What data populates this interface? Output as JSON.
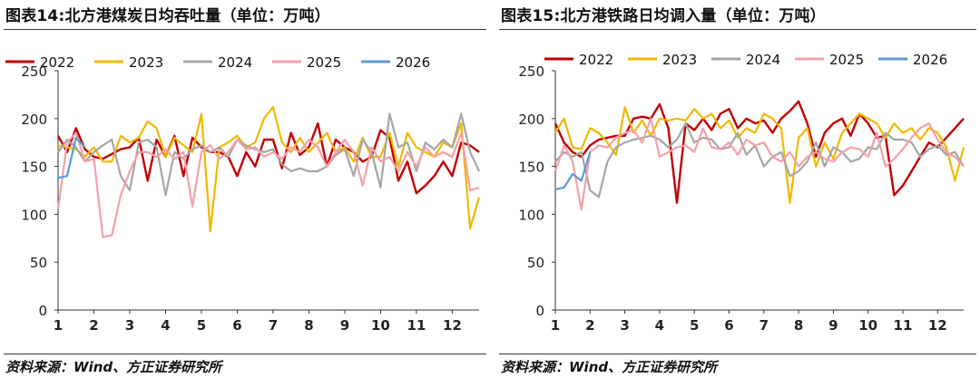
{
  "charts": [
    {
      "title": "图表14:北方港煤炭日均吞吐量（单位：万吨）",
      "source": "资料来源：Wind、方正证券研究所"
    },
    {
      "title": "图表15:北方港铁路日均调入量（单位：万吨）",
      "source": "资料来源：Wind、方正证券研究所"
    }
  ],
  "chart_data": [
    {
      "type": "line",
      "title": "图表14:北方港煤炭日均吞吐量（单位：万吨）",
      "xlabel": "",
      "ylabel": "",
      "xlim": [
        1,
        12.75
      ],
      "ylim": [
        0,
        250
      ],
      "yticks": [
        0,
        50,
        100,
        150,
        200,
        250
      ],
      "xticks": [
        1,
        2,
        3,
        4,
        5,
        6,
        7,
        8,
        9,
        10,
        11,
        12
      ],
      "legend": "top",
      "series": [
        {
          "name": "2022",
          "color": "#c00000",
          "x": [
            1,
            1.25,
            1.5,
            1.75,
            2,
            2.25,
            2.5,
            2.75,
            3,
            3.25,
            3.5,
            3.75,
            4,
            4.25,
            4.5,
            4.75,
            5,
            5.25,
            5.5,
            5.75,
            6,
            6.25,
            6.5,
            6.75,
            7,
            7.25,
            7.5,
            7.75,
            8,
            8.25,
            8.5,
            8.75,
            9,
            9.25,
            9.5,
            9.75,
            10,
            10.25,
            10.5,
            10.75,
            11,
            11.25,
            11.5,
            11.75,
            12,
            12.25,
            12.5,
            12.75
          ],
          "y": [
            182,
            165,
            190,
            168,
            160,
            158,
            163,
            168,
            170,
            180,
            135,
            178,
            160,
            182,
            140,
            180,
            170,
            165,
            165,
            160,
            140,
            165,
            150,
            178,
            178,
            148,
            185,
            162,
            170,
            195,
            150,
            178,
            170,
            165,
            155,
            160,
            188,
            180,
            135,
            155,
            122,
            130,
            140,
            155,
            140,
            175,
            172,
            165
          ]
        },
        {
          "name": "2023",
          "color": "#f0b800",
          "x": [
            1,
            1.25,
            1.5,
            1.75,
            2,
            2.25,
            2.5,
            2.75,
            3,
            3.25,
            3.5,
            3.75,
            4,
            4.25,
            4.5,
            4.75,
            5,
            5.25,
            5.5,
            5.75,
            6,
            6.25,
            6.5,
            6.75,
            7,
            7.25,
            7.5,
            7.75,
            8,
            8.25,
            8.5,
            8.75,
            9,
            9.25,
            9.5,
            9.75,
            10,
            10.25,
            10.5,
            10.75,
            11,
            11.25,
            11.5,
            11.75,
            12,
            12.25,
            12.5,
            12.75
          ],
          "y": [
            172,
            170,
            168,
            160,
            170,
            155,
            155,
            182,
            175,
            180,
            197,
            190,
            160,
            180,
            172,
            165,
            205,
            82,
            170,
            175,
            182,
            170,
            175,
            200,
            212,
            175,
            165,
            180,
            165,
            175,
            185,
            165,
            170,
            155,
            180,
            160,
            160,
            185,
            150,
            185,
            170,
            165,
            160,
            175,
            170,
            195,
            85,
            118
          ]
        },
        {
          "name": "2024",
          "color": "#a6a6a6",
          "x": [
            1,
            1.25,
            1.5,
            1.75,
            2,
            2.25,
            2.5,
            2.75,
            3,
            3.25,
            3.5,
            3.75,
            4,
            4.25,
            4.5,
            4.75,
            5,
            5.25,
            5.5,
            5.75,
            6,
            6.25,
            6.5,
            6.75,
            7,
            7.25,
            7.5,
            7.75,
            8,
            8.25,
            8.5,
            8.75,
            9,
            9.25,
            9.5,
            9.75,
            10,
            10.25,
            10.5,
            10.75,
            11,
            11.25,
            11.5,
            11.75,
            12,
            12.25,
            12.5,
            12.75
          ],
          "y": [
            165,
            178,
            170,
            155,
            165,
            172,
            178,
            140,
            125,
            175,
            178,
            170,
            120,
            165,
            158,
            168,
            172,
            165,
            170,
            160,
            178,
            172,
            168,
            165,
            168,
            152,
            145,
            148,
            145,
            145,
            150,
            162,
            168,
            140,
            178,
            165,
            128,
            205,
            170,
            175,
            145,
            175,
            168,
            178,
            170,
            205,
            165,
            145
          ]
        },
        {
          "name": "2025",
          "color": "#f4a0a8",
          "x": [
            1,
            1.25,
            1.5,
            1.75,
            2,
            2.25,
            2.5,
            2.75,
            3,
            3.25,
            3.5,
            3.75,
            4,
            4.25,
            4.5,
            4.75,
            5,
            5.25,
            5.5,
            5.75,
            6,
            6.25,
            6.5,
            6.75,
            7,
            7.25,
            7.5,
            7.75,
            8,
            8.25,
            8.5,
            8.75,
            9,
            9.25,
            9.5,
            9.75,
            10,
            10.25,
            10.5,
            10.75,
            11,
            11.25,
            11.5,
            11.75,
            12,
            12.25,
            12.5,
            12.75
          ],
          "y": [
            105,
            175,
            185,
            155,
            158,
            76,
            78,
            120,
            145,
            165,
            165,
            160,
            168,
            158,
            165,
            108,
            165,
            172,
            158,
            165,
            178,
            168,
            170,
            160,
            165,
            158,
            170,
            165,
            178,
            170,
            150,
            165,
            178,
            165,
            130,
            170,
            155,
            160,
            145,
            165,
            150,
            170,
            160,
            165,
            160,
            185,
            125,
            128
          ]
        },
        {
          "name": "2026",
          "color": "#5b9bd5",
          "x": [
            1,
            1.25,
            1.5,
            1.75
          ],
          "y": [
            138,
            140,
            180,
            170
          ]
        }
      ]
    },
    {
      "type": "line",
      "title": "图表15:北方港铁路日均调入量（单位：万吨）",
      "xlabel": "",
      "ylabel": "",
      "xlim": [
        1,
        12.75
      ],
      "ylim": [
        0,
        250
      ],
      "yticks": [
        0,
        50,
        100,
        150,
        200,
        250
      ],
      "xticks": [
        1,
        2,
        3,
        4,
        5,
        6,
        7,
        8,
        9,
        10,
        11,
        12
      ],
      "legend": "top",
      "series": [
        {
          "name": "2022",
          "color": "#c00000",
          "x": [
            1,
            1.25,
            1.5,
            1.75,
            2,
            2.25,
            2.5,
            2.75,
            3,
            3.25,
            3.5,
            3.75,
            4,
            4.25,
            4.5,
            4.75,
            5,
            5.25,
            5.5,
            5.75,
            6,
            6.25,
            6.5,
            6.75,
            7,
            7.25,
            7.5,
            7.75,
            8,
            8.25,
            8.5,
            8.75,
            9,
            9.25,
            9.5,
            9.75,
            10,
            10.25,
            10.5,
            10.75,
            11,
            11.25,
            11.5,
            11.75,
            12,
            12.25,
            12.5,
            12.75
          ],
          "y": [
            195,
            175,
            165,
            160,
            172,
            178,
            180,
            182,
            182,
            200,
            202,
            200,
            215,
            190,
            112,
            195,
            188,
            200,
            188,
            205,
            210,
            190,
            200,
            195,
            198,
            185,
            200,
            208,
            218,
            195,
            160,
            185,
            195,
            200,
            182,
            205,
            195,
            180,
            182,
            120,
            130,
            145,
            160,
            175,
            170,
            180,
            190,
            200
          ]
        },
        {
          "name": "2023",
          "color": "#f0b800",
          "x": [
            1,
            1.25,
            1.5,
            1.75,
            2,
            2.25,
            2.5,
            2.75,
            3,
            3.25,
            3.5,
            3.75,
            4,
            4.25,
            4.5,
            4.75,
            5,
            5.25,
            5.5,
            5.75,
            6,
            6.25,
            6.5,
            6.75,
            7,
            7.25,
            7.5,
            7.75,
            8,
            8.25,
            8.5,
            8.75,
            9,
            9.25,
            9.5,
            9.75,
            10,
            10.25,
            10.5,
            10.75,
            11,
            11.25,
            11.5,
            11.75,
            12,
            12.25,
            12.5,
            12.75
          ],
          "y": [
            185,
            200,
            170,
            168,
            190,
            185,
            175,
            162,
            212,
            185,
            198,
            182,
            200,
            198,
            200,
            198,
            210,
            200,
            205,
            190,
            198,
            180,
            190,
            185,
            205,
            200,
            190,
            112,
            180,
            190,
            150,
            175,
            158,
            185,
            195,
            205,
            200,
            195,
            180,
            195,
            185,
            190,
            178,
            190,
            185,
            170,
            135,
            170
          ]
        },
        {
          "name": "2024",
          "color": "#a6a6a6",
          "x": [
            1,
            1.25,
            1.5,
            1.75,
            2,
            2.25,
            2.5,
            2.75,
            3,
            3.25,
            3.5,
            3.75,
            4,
            4.25,
            4.5,
            4.75,
            5,
            5.25,
            5.5,
            5.75,
            6,
            6.25,
            6.5,
            6.75,
            7,
            7.25,
            7.5,
            7.75,
            8,
            8.25,
            8.5,
            8.75,
            9,
            9.25,
            9.5,
            9.75,
            10,
            10.25,
            10.5,
            10.75,
            11,
            11.25,
            11.5,
            11.75,
            12,
            12.25,
            12.5,
            12.75
          ],
          "y": [
            155,
            165,
            160,
            165,
            125,
            118,
            155,
            170,
            175,
            178,
            180,
            182,
            178,
            170,
            178,
            195,
            175,
            180,
            178,
            168,
            170,
            185,
            162,
            172,
            150,
            160,
            165,
            140,
            145,
            155,
            175,
            150,
            170,
            165,
            155,
            158,
            170,
            168,
            185,
            178,
            178,
            175,
            160,
            168,
            172,
            162,
            165,
            150
          ]
        },
        {
          "name": "2025",
          "color": "#f4a0a8",
          "x": [
            1,
            1.25,
            1.5,
            1.75,
            2,
            2.25,
            2.5,
            2.75,
            3,
            3.25,
            3.5,
            3.75,
            4,
            4.25,
            4.5,
            4.75,
            5,
            5.25,
            5.5,
            5.75,
            6,
            6.25,
            6.5,
            6.75,
            7,
            7.25,
            7.5,
            7.75,
            8,
            8.25,
            8.5,
            8.75,
            9,
            9.25,
            9.5,
            9.75,
            10,
            10.25,
            10.5,
            10.75,
            11,
            11.25,
            11.5,
            11.75,
            12,
            12.25,
            12.5,
            12.75
          ],
          "y": [
            145,
            172,
            155,
            105,
            165,
            172,
            170,
            180,
            185,
            188,
            175,
            200,
            160,
            165,
            170,
            172,
            165,
            190,
            170,
            168,
            175,
            162,
            178,
            172,
            175,
            160,
            155,
            165,
            150,
            160,
            165,
            158,
            155,
            165,
            170,
            168,
            160,
            185,
            150,
            158,
            168,
            180,
            190,
            195,
            178,
            165,
            160,
            150
          ]
        },
        {
          "name": "2026",
          "color": "#5b9bd5",
          "x": [
            1,
            1.25,
            1.5,
            1.75,
            2
          ],
          "y": [
            126,
            128,
            142,
            135,
            165
          ]
        }
      ]
    }
  ]
}
